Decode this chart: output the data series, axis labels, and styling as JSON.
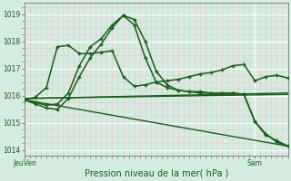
{
  "xlabel": "Pression niveau de la mer( hPa )",
  "bg_color": "#d4ede0",
  "plot_bg_color": "#d4ede0",
  "grid_color_major": "#ffffff",
  "grid_color_minor": "#e8c8c8",
  "line_color": "#1a5c1a",
  "ylim": [
    1013.8,
    1019.4
  ],
  "xlim": [
    0,
    48
  ],
  "yticks": [
    1014,
    1015,
    1016,
    1017,
    1018,
    1019
  ],
  "xtick_labels": [
    "JeuVen",
    "Sam"
  ],
  "xtick_positions": [
    0,
    42
  ],
  "series": [
    {
      "x": [
        0,
        2,
        4,
        6,
        8,
        10,
        12,
        14,
        16,
        18,
        20,
        22,
        24,
        26,
        28,
        30,
        32,
        34,
        36,
        38,
        40,
        42,
        44,
        46,
        48
      ],
      "y": [
        1015.85,
        1015.75,
        1015.65,
        1015.7,
        1016.1,
        1017.1,
        1017.8,
        1018.1,
        1018.6,
        1018.95,
        1018.8,
        1018.0,
        1016.9,
        1016.4,
        1016.2,
        1016.15,
        1016.1,
        1016.1,
        1016.1,
        1016.1,
        1016.05,
        1015.05,
        1014.55,
        1014.35,
        1014.15
      ],
      "marker": "+",
      "ms": 3.5,
      "lw": 1.1
    },
    {
      "x": [
        0,
        2,
        4,
        6,
        8,
        10,
        12,
        14,
        16,
        18,
        20,
        22,
        24,
        26,
        28,
        30,
        32,
        34,
        36,
        38,
        40,
        42,
        44,
        46,
        48
      ],
      "y": [
        1015.85,
        1015.7,
        1015.55,
        1015.5,
        1015.9,
        1016.7,
        1017.4,
        1017.9,
        1018.5,
        1018.95,
        1018.6,
        1017.4,
        1016.5,
        1016.3,
        1016.2,
        1016.15,
        1016.15,
        1016.1,
        1016.1,
        1016.1,
        1016.05,
        1015.05,
        1014.6,
        1014.3,
        1014.15
      ],
      "marker": "+",
      "ms": 3.5,
      "lw": 1.1
    },
    {
      "x": [
        0,
        2,
        4,
        6,
        8,
        10,
        12,
        14,
        16,
        18,
        20,
        22,
        24,
        26,
        28,
        30,
        32,
        34,
        36,
        38,
        40,
        42,
        44,
        46,
        48
      ],
      "y": [
        1015.85,
        1015.95,
        1016.3,
        1017.8,
        1017.85,
        1017.55,
        1017.55,
        1017.6,
        1017.65,
        1016.7,
        1016.35,
        1016.4,
        1016.5,
        1016.55,
        1016.6,
        1016.7,
        1016.8,
        1016.85,
        1016.95,
        1017.1,
        1017.15,
        1016.55,
        1016.7,
        1016.75,
        1016.65
      ],
      "marker": "+",
      "ms": 3.5,
      "lw": 1.1
    },
    {
      "x": [
        0,
        48
      ],
      "y": [
        1015.9,
        1016.05
      ],
      "marker": null,
      "ms": 0,
      "lw": 1.0
    },
    {
      "x": [
        0,
        48
      ],
      "y": [
        1015.9,
        1016.1
      ],
      "marker": null,
      "ms": 0,
      "lw": 1.0
    },
    {
      "x": [
        0,
        48
      ],
      "y": [
        1015.85,
        1014.15
      ],
      "marker": null,
      "ms": 0,
      "lw": 1.0
    }
  ]
}
